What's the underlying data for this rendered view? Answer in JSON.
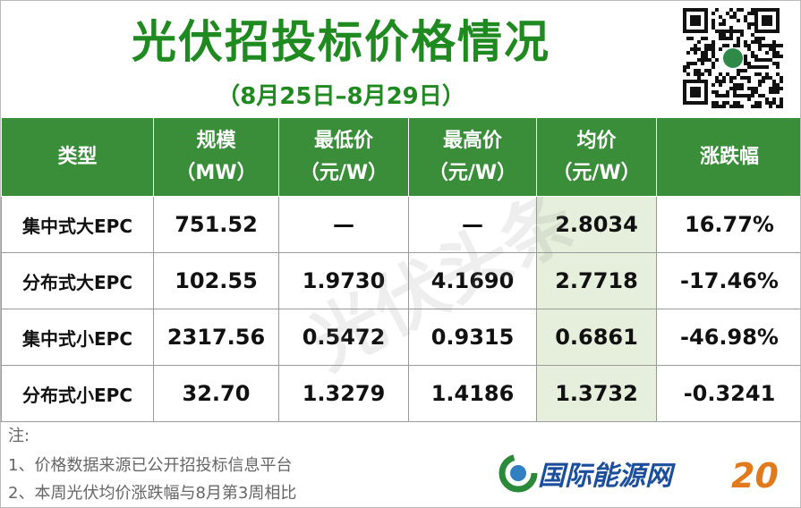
{
  "header": {
    "title": "光伏招投标价格情况",
    "subtitle": "（8月25日–8月29日）"
  },
  "table": {
    "columns": [
      [
        "类型"
      ],
      [
        "规模",
        "（MW）"
      ],
      [
        "最低价",
        "（元/W）"
      ],
      [
        "最高价",
        "（元/W）"
      ],
      [
        "均价",
        "（元/W）"
      ],
      [
        "涨跌幅"
      ]
    ],
    "rows": [
      [
        "集中式大EPC",
        "751.52",
        "—",
        "—",
        "2.8034",
        "16.77%"
      ],
      [
        "分布式大EPC",
        "102.55",
        "1.9730",
        "4.1690",
        "2.7718",
        "-17.46%"
      ],
      [
        "集中式小EPC",
        "2317.56",
        "0.5472",
        "0.9315",
        "0.6861",
        "-46.98%"
      ],
      [
        "分布式小EPC",
        "32.70",
        "1.3279",
        "1.4186",
        "1.3732",
        "-0.3241"
      ]
    ]
  },
  "watermark": "光伏头条",
  "notes": [
    "注:",
    "1、价格数据来源已公开招投标信息平台",
    "2、本周光伏均价涨跌幅与8月第3周相比"
  ],
  "logo": "国际能源网"
}
